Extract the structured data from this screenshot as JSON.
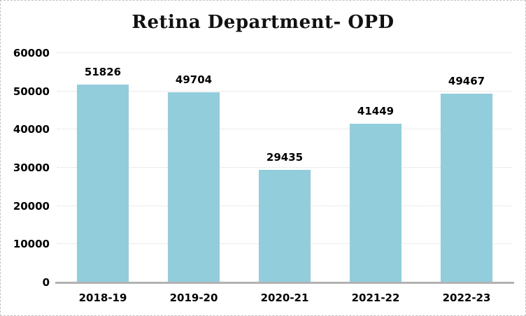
{
  "window": {
    "background_color": "#ffffff",
    "border_color": "#c3c3c3"
  },
  "chart_data": {
    "type": "bar",
    "title": "Retina Department- OPD",
    "categories": [
      "2018-19",
      "2019-20",
      "2020-21",
      "2021-22",
      "2022-23"
    ],
    "values": [
      51826,
      49704,
      29435,
      41449,
      49467
    ],
    "data_labels": [
      "51826",
      "49704",
      "29435",
      "41449",
      "49467"
    ],
    "xlabel": "",
    "ylabel": "",
    "ylim": [
      0,
      60000
    ],
    "y_ticks": [
      0,
      10000,
      20000,
      30000,
      40000,
      50000,
      60000
    ],
    "y_tick_labels": [
      "0",
      "10000",
      "20000",
      "30000",
      "40000",
      "50000",
      "60000"
    ],
    "grid": "horizontal-dotted",
    "legend": "none",
    "bar_color": "#92cdDC",
    "gridline_color": "#d9d9d9",
    "axis_line_color": "#b2b2b2",
    "text_color": "#000000",
    "title_color": "#111111"
  }
}
